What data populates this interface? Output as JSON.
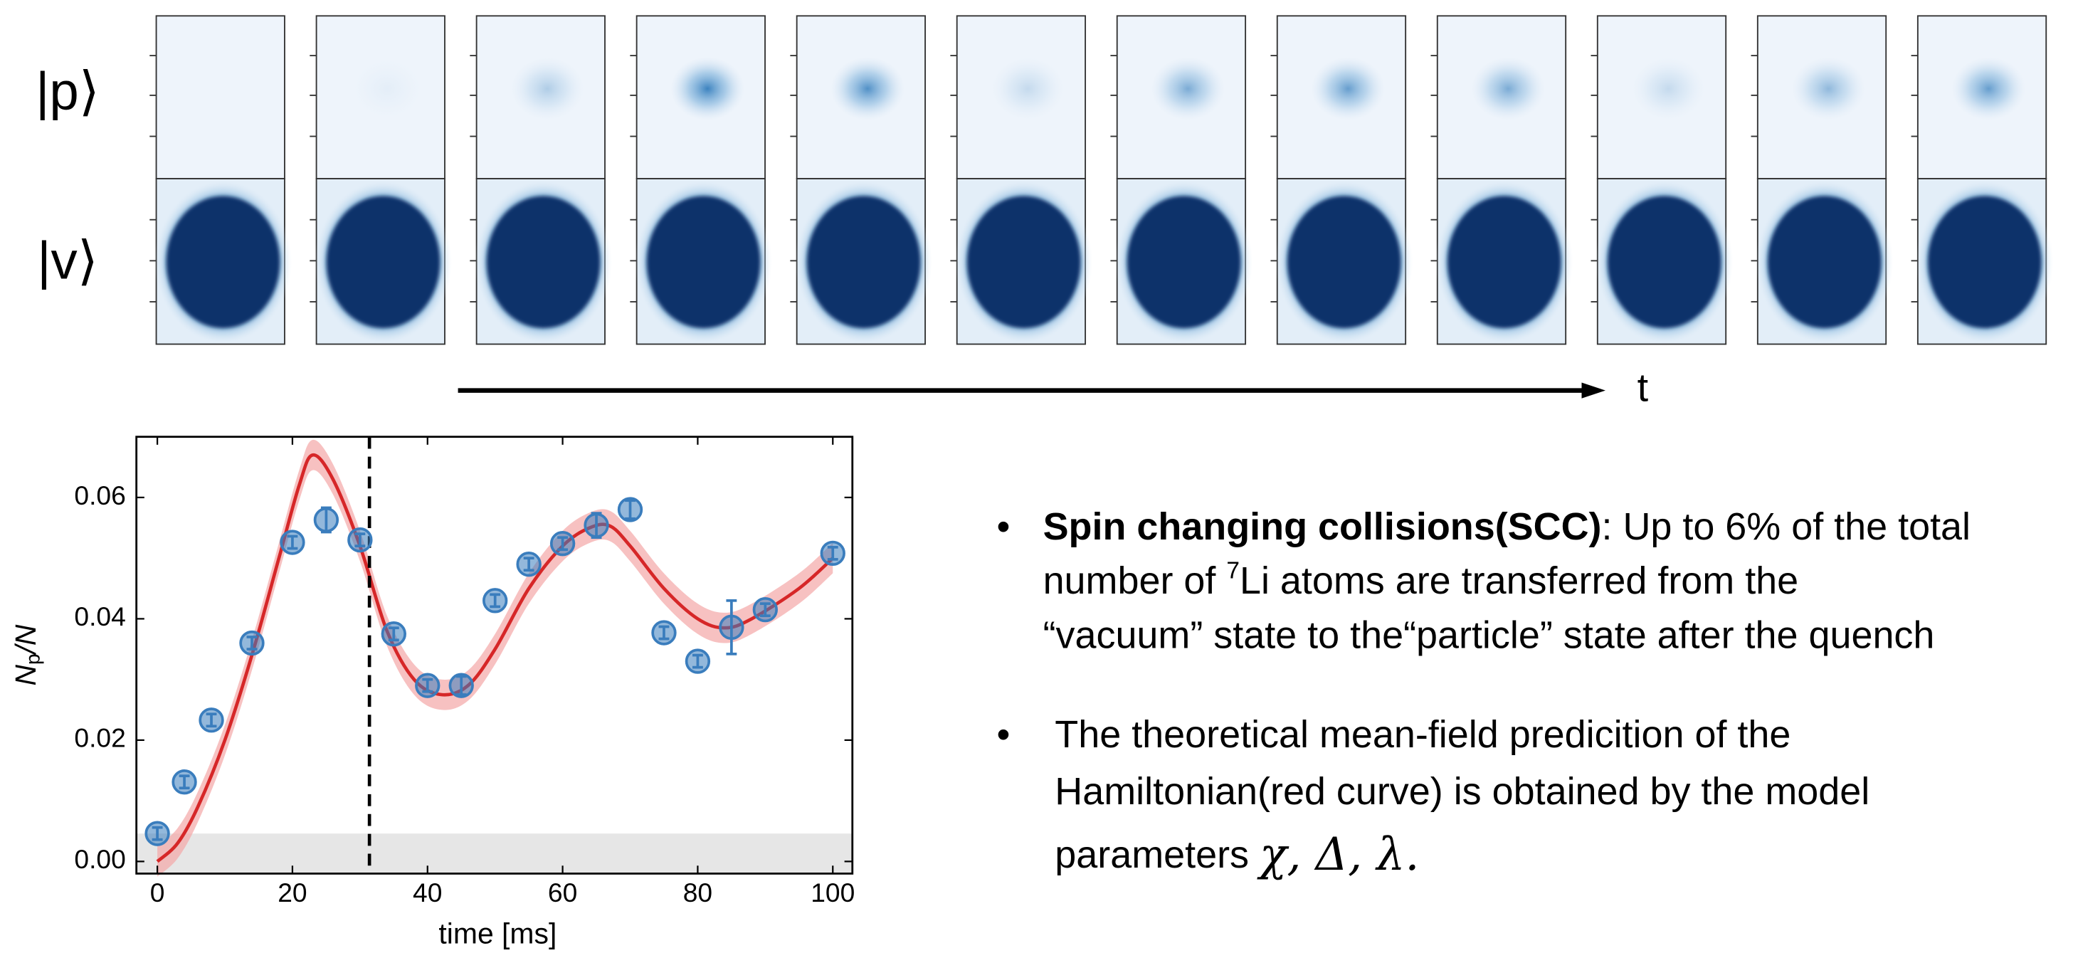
{
  "row_labels": [
    "|p⟩",
    "|v⟩"
  ],
  "time_axis_label": "t",
  "chart_data": {
    "type": "scatter",
    "xlabel": "time [ms]",
    "ylabel": [
      "N",
      "p",
      "/N"
    ],
    "x": [
      0,
      4,
      8,
      14,
      20,
      25,
      30,
      35,
      40,
      45,
      50,
      55,
      60,
      65,
      70,
      75,
      80,
      85,
      90,
      100
    ],
    "values": [
      0.0046,
      0.0131,
      0.0233,
      0.036,
      0.0526,
      0.0563,
      0.053,
      0.0375,
      0.029,
      0.029,
      0.043,
      0.049,
      0.0524,
      0.0554,
      0.058,
      0.0377,
      0.033,
      0.0386,
      0.0415,
      0.0508
    ],
    "errors": [
      0.001,
      0.001,
      0.001,
      0.001,
      0.001,
      0.002,
      0.001,
      0.001,
      0.001,
      0.0015,
      0.001,
      0.001,
      0.001,
      0.002,
      0.0015,
      0.001,
      0.001,
      0.0044,
      0.001,
      0.001
    ],
    "color": "#3a7dbd",
    "theory": {
      "color": "#d62728",
      "band_color": "#f4a6a6",
      "band": 0.0025,
      "x": [
        0,
        3,
        6,
        10,
        14,
        18,
        21,
        23,
        26,
        30,
        34,
        38,
        42,
        46,
        50,
        55,
        60,
        64,
        67,
        70,
        75,
        80,
        84,
        88,
        95,
        100
      ],
      "values": [
        0,
        0.003,
        0.009,
        0.02,
        0.034,
        0.05,
        0.062,
        0.067,
        0.063,
        0.052,
        0.038,
        0.03,
        0.0275,
        0.029,
        0.035,
        0.045,
        0.052,
        0.055,
        0.0553,
        0.052,
        0.045,
        0.04,
        0.0385,
        0.04,
        0.045,
        0.05
      ]
    },
    "dashed_x": 31.4,
    "shaded_below": 0.0046,
    "xlim": [
      -3.1,
      102.9
    ],
    "ylim": [
      -0.002,
      0.07
    ],
    "xticks": [
      0,
      20,
      40,
      60,
      80,
      100
    ],
    "yticks": [
      {
        "value": 0,
        "label": "0.00"
      },
      {
        "value": 0.02,
        "label": "0.02"
      },
      {
        "value": 0.04,
        "label": "0.04"
      },
      {
        "value": 0.06,
        "label": "0.06"
      }
    ]
  },
  "bullets": [
    {
      "marker": "•",
      "lines": [
        [
          "Spin changing collisions(SCC)",
          ": Up to 6% of the total"
        ],
        [
          "number of ",
          "7",
          "Li atoms are transferred from the"
        ],
        [
          "“vacuum” state to the“particle” state after the quench"
        ]
      ]
    },
    {
      "marker": "•",
      "lines": [
        [
          "The theoretical mean-field predicition of the"
        ],
        [
          "Hamiltonian(red curve) is obtained by the model"
        ],
        [
          "parameters ",
          "χ, Δ, λ."
        ]
      ]
    }
  ]
}
